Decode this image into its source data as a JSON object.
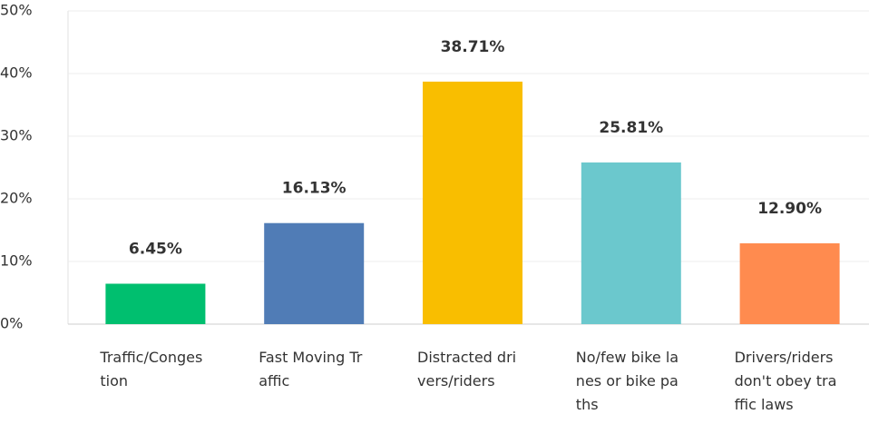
{
  "chart_data": {
    "type": "bar",
    "categories": [
      "Traffic/Congestion",
      "Fast Moving Traffic",
      "Distracted drivers/riders",
      "No/few bike lanes or bike paths",
      "Drivers/riders don't obey traffic laws"
    ],
    "values": [
      6.45,
      16.13,
      38.71,
      25.81,
      12.9
    ],
    "value_labels": [
      "6.45%",
      "16.13%",
      "38.71%",
      "25.81%",
      "12.90%"
    ],
    "colors": [
      "#00bf6f",
      "#507cb6",
      "#f9be00",
      "#6bc8cd",
      "#ff8b4f"
    ],
    "ylim": [
      0,
      50
    ],
    "yticks": [
      {
        "value": 0,
        "label": "0%"
      },
      {
        "value": 10,
        "label": "10%"
      },
      {
        "value": 20,
        "label": "20%"
      },
      {
        "value": 30,
        "label": "30%"
      },
      {
        "value": 40,
        "label": "40%"
      },
      {
        "value": 50,
        "label": "50%"
      }
    ],
    "grid": true
  }
}
